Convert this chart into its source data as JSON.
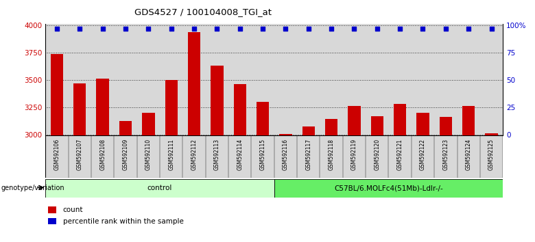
{
  "title": "GDS4527 / 100104008_TGI_at",
  "samples": [
    "GSM592106",
    "GSM592107",
    "GSM592108",
    "GSM592109",
    "GSM592110",
    "GSM592111",
    "GSM592112",
    "GSM592113",
    "GSM592114",
    "GSM592115",
    "GSM592116",
    "GSM592117",
    "GSM592118",
    "GSM592119",
    "GSM592120",
    "GSM592121",
    "GSM592122",
    "GSM592123",
    "GSM592124",
    "GSM592125"
  ],
  "counts": [
    3740,
    3470,
    3510,
    3120,
    3200,
    3500,
    3940,
    3630,
    3460,
    3300,
    3003,
    3070,
    3140,
    3260,
    3170,
    3280,
    3200,
    3160,
    3260,
    3010
  ],
  "percentile_ranks": [
    97,
    97,
    97,
    97,
    97,
    97,
    97,
    97,
    97,
    97,
    97,
    97,
    97,
    97,
    97,
    97,
    97,
    97,
    97,
    97
  ],
  "ylim_left": [
    2990,
    4010
  ],
  "ylim_right": [
    -1,
    101
  ],
  "yticks_left": [
    3000,
    3250,
    3500,
    3750,
    4000
  ],
  "yticks_right": [
    0,
    25,
    50,
    75,
    100
  ],
  "bar_color": "#cc0000",
  "dot_color": "#0000cc",
  "bar_width": 0.55,
  "dot_size": 18,
  "group1_label": "control",
  "group2_label": "C57BL/6.MOLFc4(51Mb)-Ldlr-/-",
  "group1_count": 10,
  "group2_count": 10,
  "group1_color": "#ccffcc",
  "group2_color": "#66ee66",
  "genotype_label": "genotype/variation",
  "legend_count_label": "count",
  "legend_pct_label": "percentile rank within the sample",
  "grid_color": "#333333",
  "bg_color": "#ffffff",
  "bar_area_color": "#ffffff",
  "col_bg_color": "#d8d8d8"
}
